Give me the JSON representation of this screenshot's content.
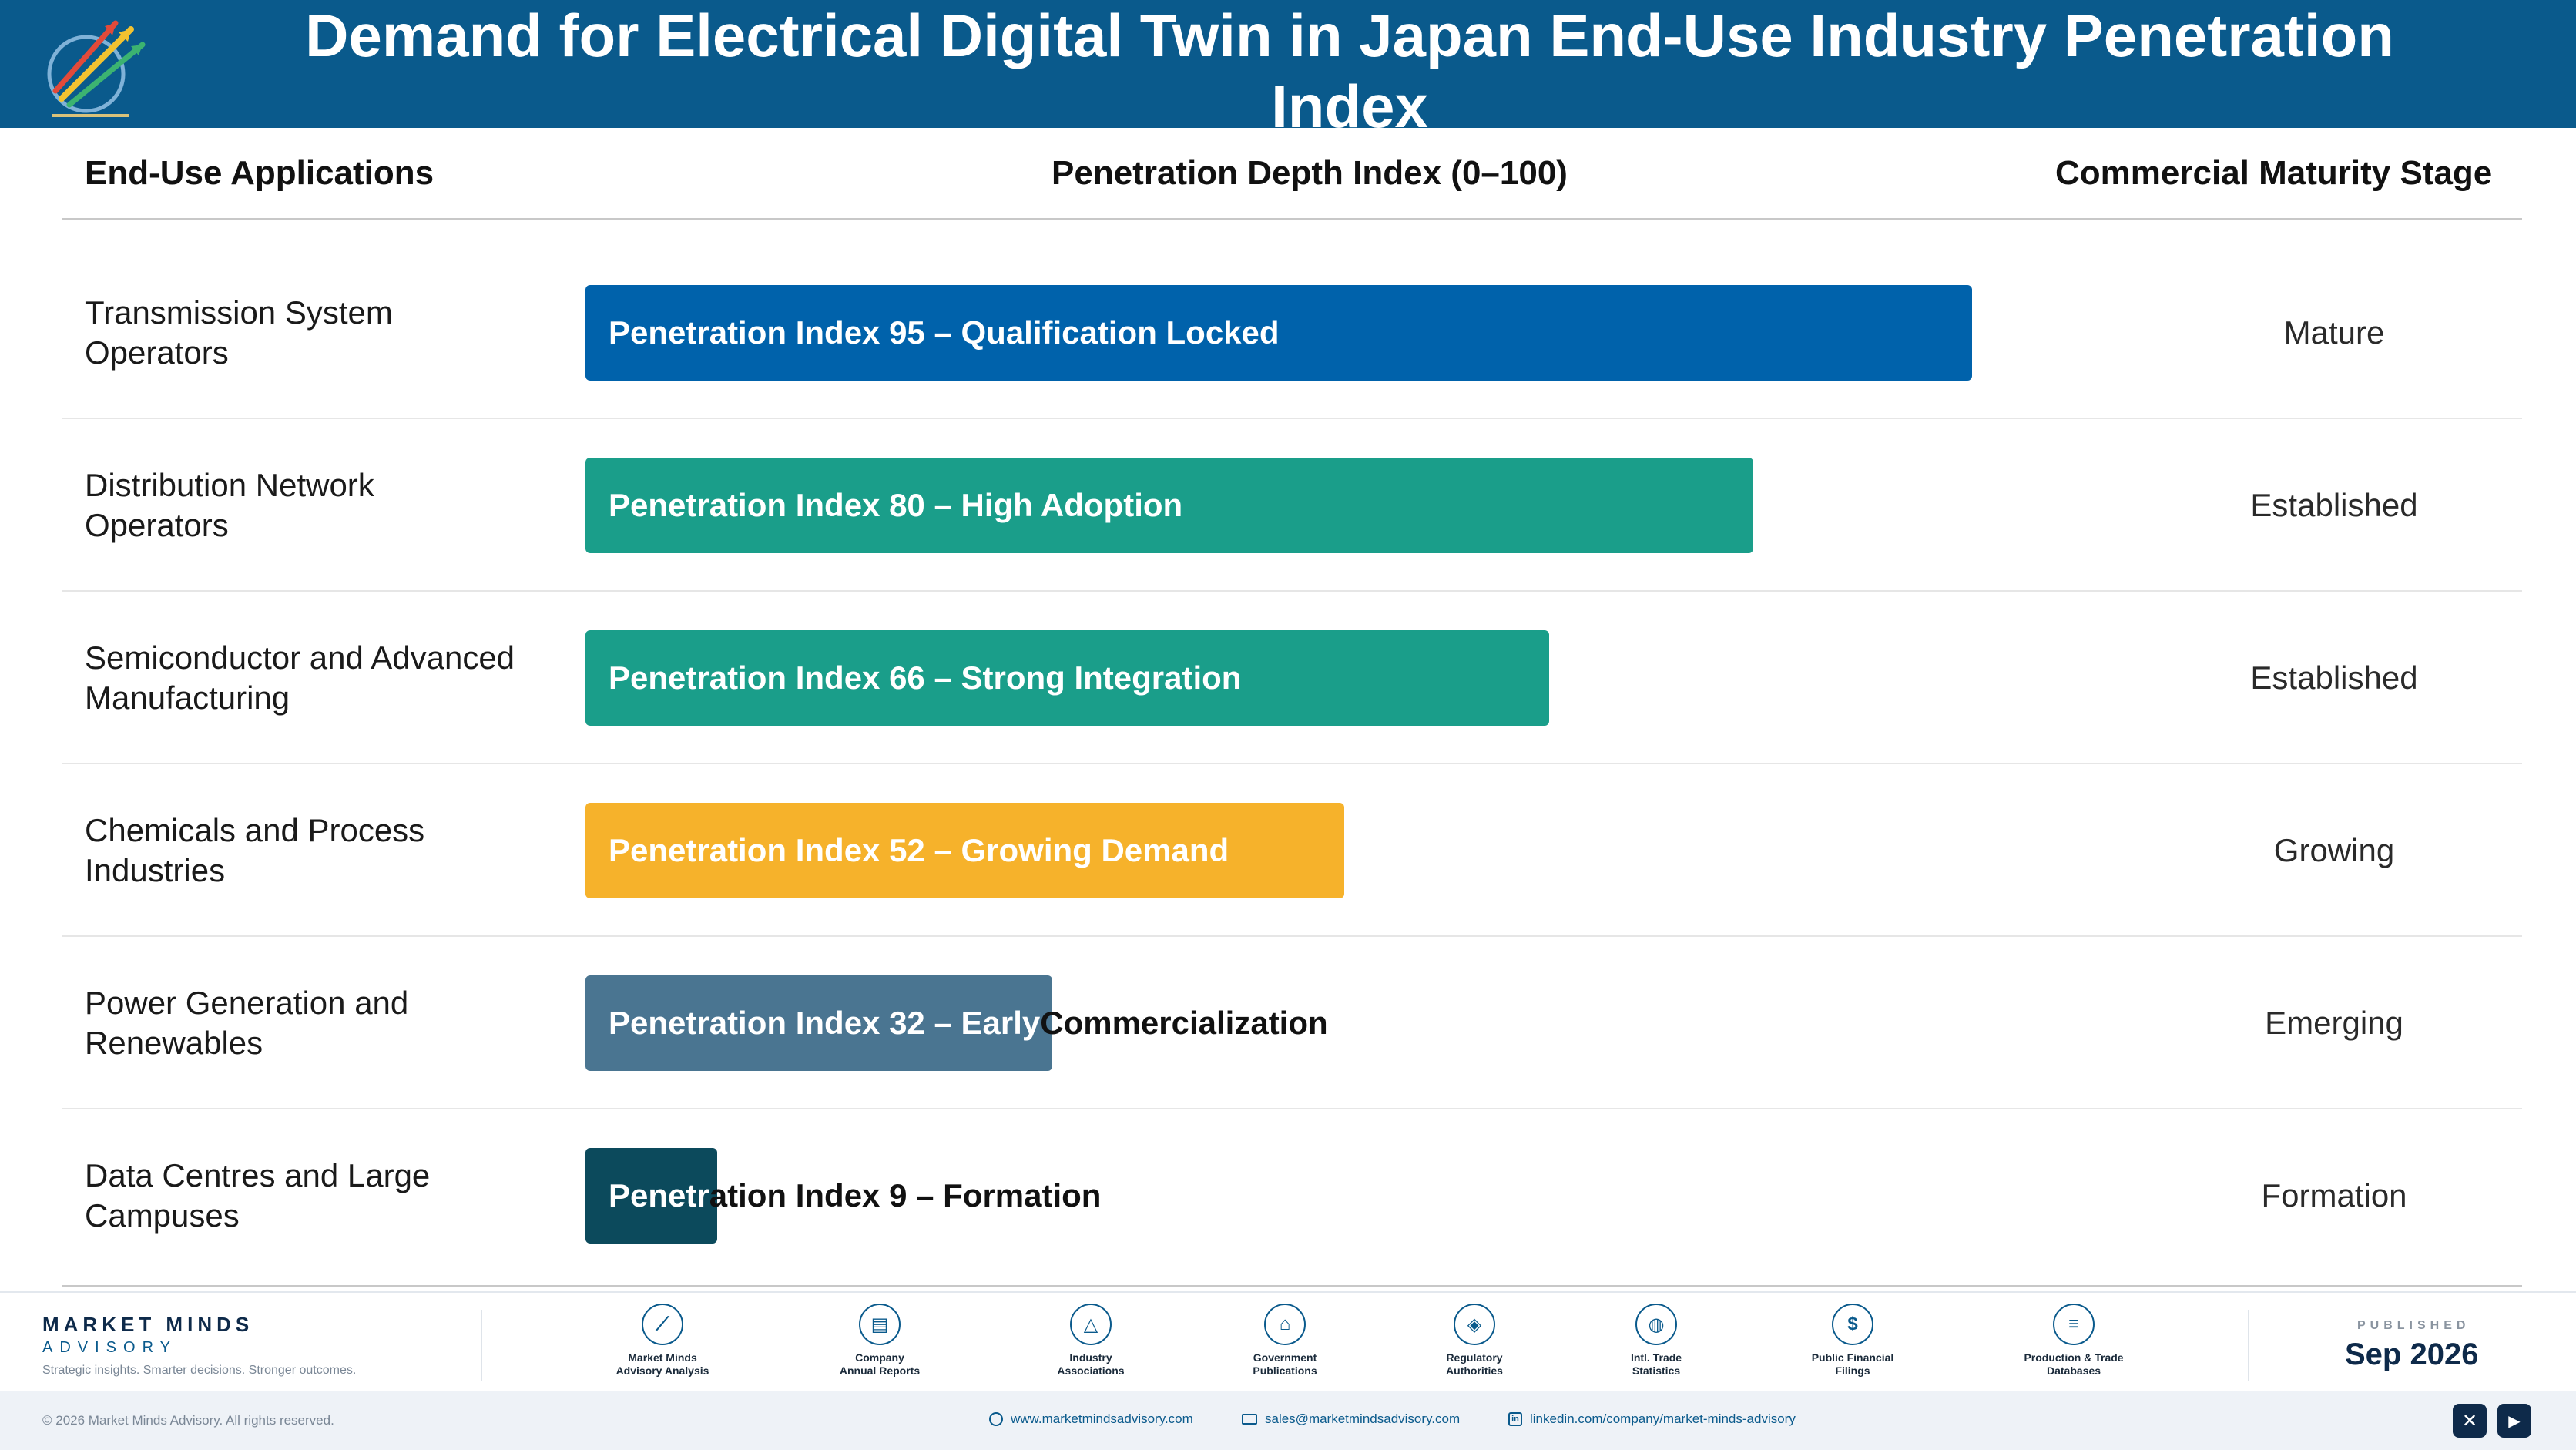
{
  "header": {
    "title_line1": "Demand for Electrical Digital Twin in Japan End-Use Industry Penetration",
    "title_line2": "Index",
    "logo_icon": "rocket-arrows-icon"
  },
  "columns": {
    "c1": "End-Use Applications",
    "c2": "Penetration Depth Index (0–100)",
    "c3": "Commercial Maturity Stage"
  },
  "chart_data": {
    "type": "bar",
    "orientation": "horizontal",
    "xlim": [
      0,
      100
    ],
    "categories": [
      [
        "Transmission System",
        "Operators"
      ],
      [
        "Distribution Network",
        "Operators"
      ],
      [
        "Semiconductor and Advanced",
        "Manufacturing"
      ],
      [
        "Chemicals and Process",
        "Industries"
      ],
      [
        "Power Generation and",
        "Renewables"
      ],
      [
        "Data Centres and Large",
        "Campuses"
      ]
    ],
    "values": [
      95,
      80,
      66,
      52,
      32,
      9
    ],
    "bar_labels": [
      "Penetration Index 95 – Qualification Locked",
      "Penetration Index 80 – High Adoption",
      "Penetration Index 66 – Strong Integration",
      "Penetration Index 52 – Growing Demand",
      "Penetration Index 32 – Early Commercialization",
      "Penetration Index 9 – Formation"
    ],
    "stages": [
      "Mature",
      "Established",
      "Established",
      "Growing",
      "Emerging",
      "Formation"
    ],
    "colors": [
      "#0062ab",
      "#1a9e8a",
      "#1a9e8a",
      "#f6b22b",
      "#4a7591",
      "#0c4a5c"
    ]
  },
  "footer": {
    "brand_name": "MARKET MINDS",
    "brand_sub": "ADVISORY",
    "tagline": "Strategic insights. Smarter decisions. Stronger outcomes.",
    "sources": [
      {
        "icon": "trend-chart-icon",
        "l1": "Market Minds",
        "l2": "Advisory Analysis"
      },
      {
        "icon": "document-icon",
        "l1": "Company",
        "l2": "Annual Reports"
      },
      {
        "icon": "network-icon",
        "l1": "Industry",
        "l2": "Associations"
      },
      {
        "icon": "government-building-icon",
        "l1": "Government",
        "l2": "Publications"
      },
      {
        "icon": "shield-check-icon",
        "l1": "Regulatory",
        "l2": "Authorities"
      },
      {
        "icon": "globe-icon",
        "l1": "Intl. Trade",
        "l2": "Statistics"
      },
      {
        "icon": "dollar-coin-icon",
        "l1": "Public Financial",
        "l2": "Filings"
      },
      {
        "icon": "database-icon",
        "l1": "Production & Trade",
        "l2": "Databases"
      }
    ],
    "published_label": "PUBLISHED",
    "published_date": "Sep 2026",
    "copyright": "© 2026 Market Minds Advisory. All rights reserved.",
    "website": "www.marketmindsadvisory.com",
    "email": "sales@marketmindsadvisory.com",
    "linkedin": "linkedin.com/company/market-minds-advisory",
    "social": [
      {
        "icon": "x-icon",
        "glyph": "✕"
      },
      {
        "icon": "youtube-icon",
        "glyph": "▶"
      }
    ]
  }
}
